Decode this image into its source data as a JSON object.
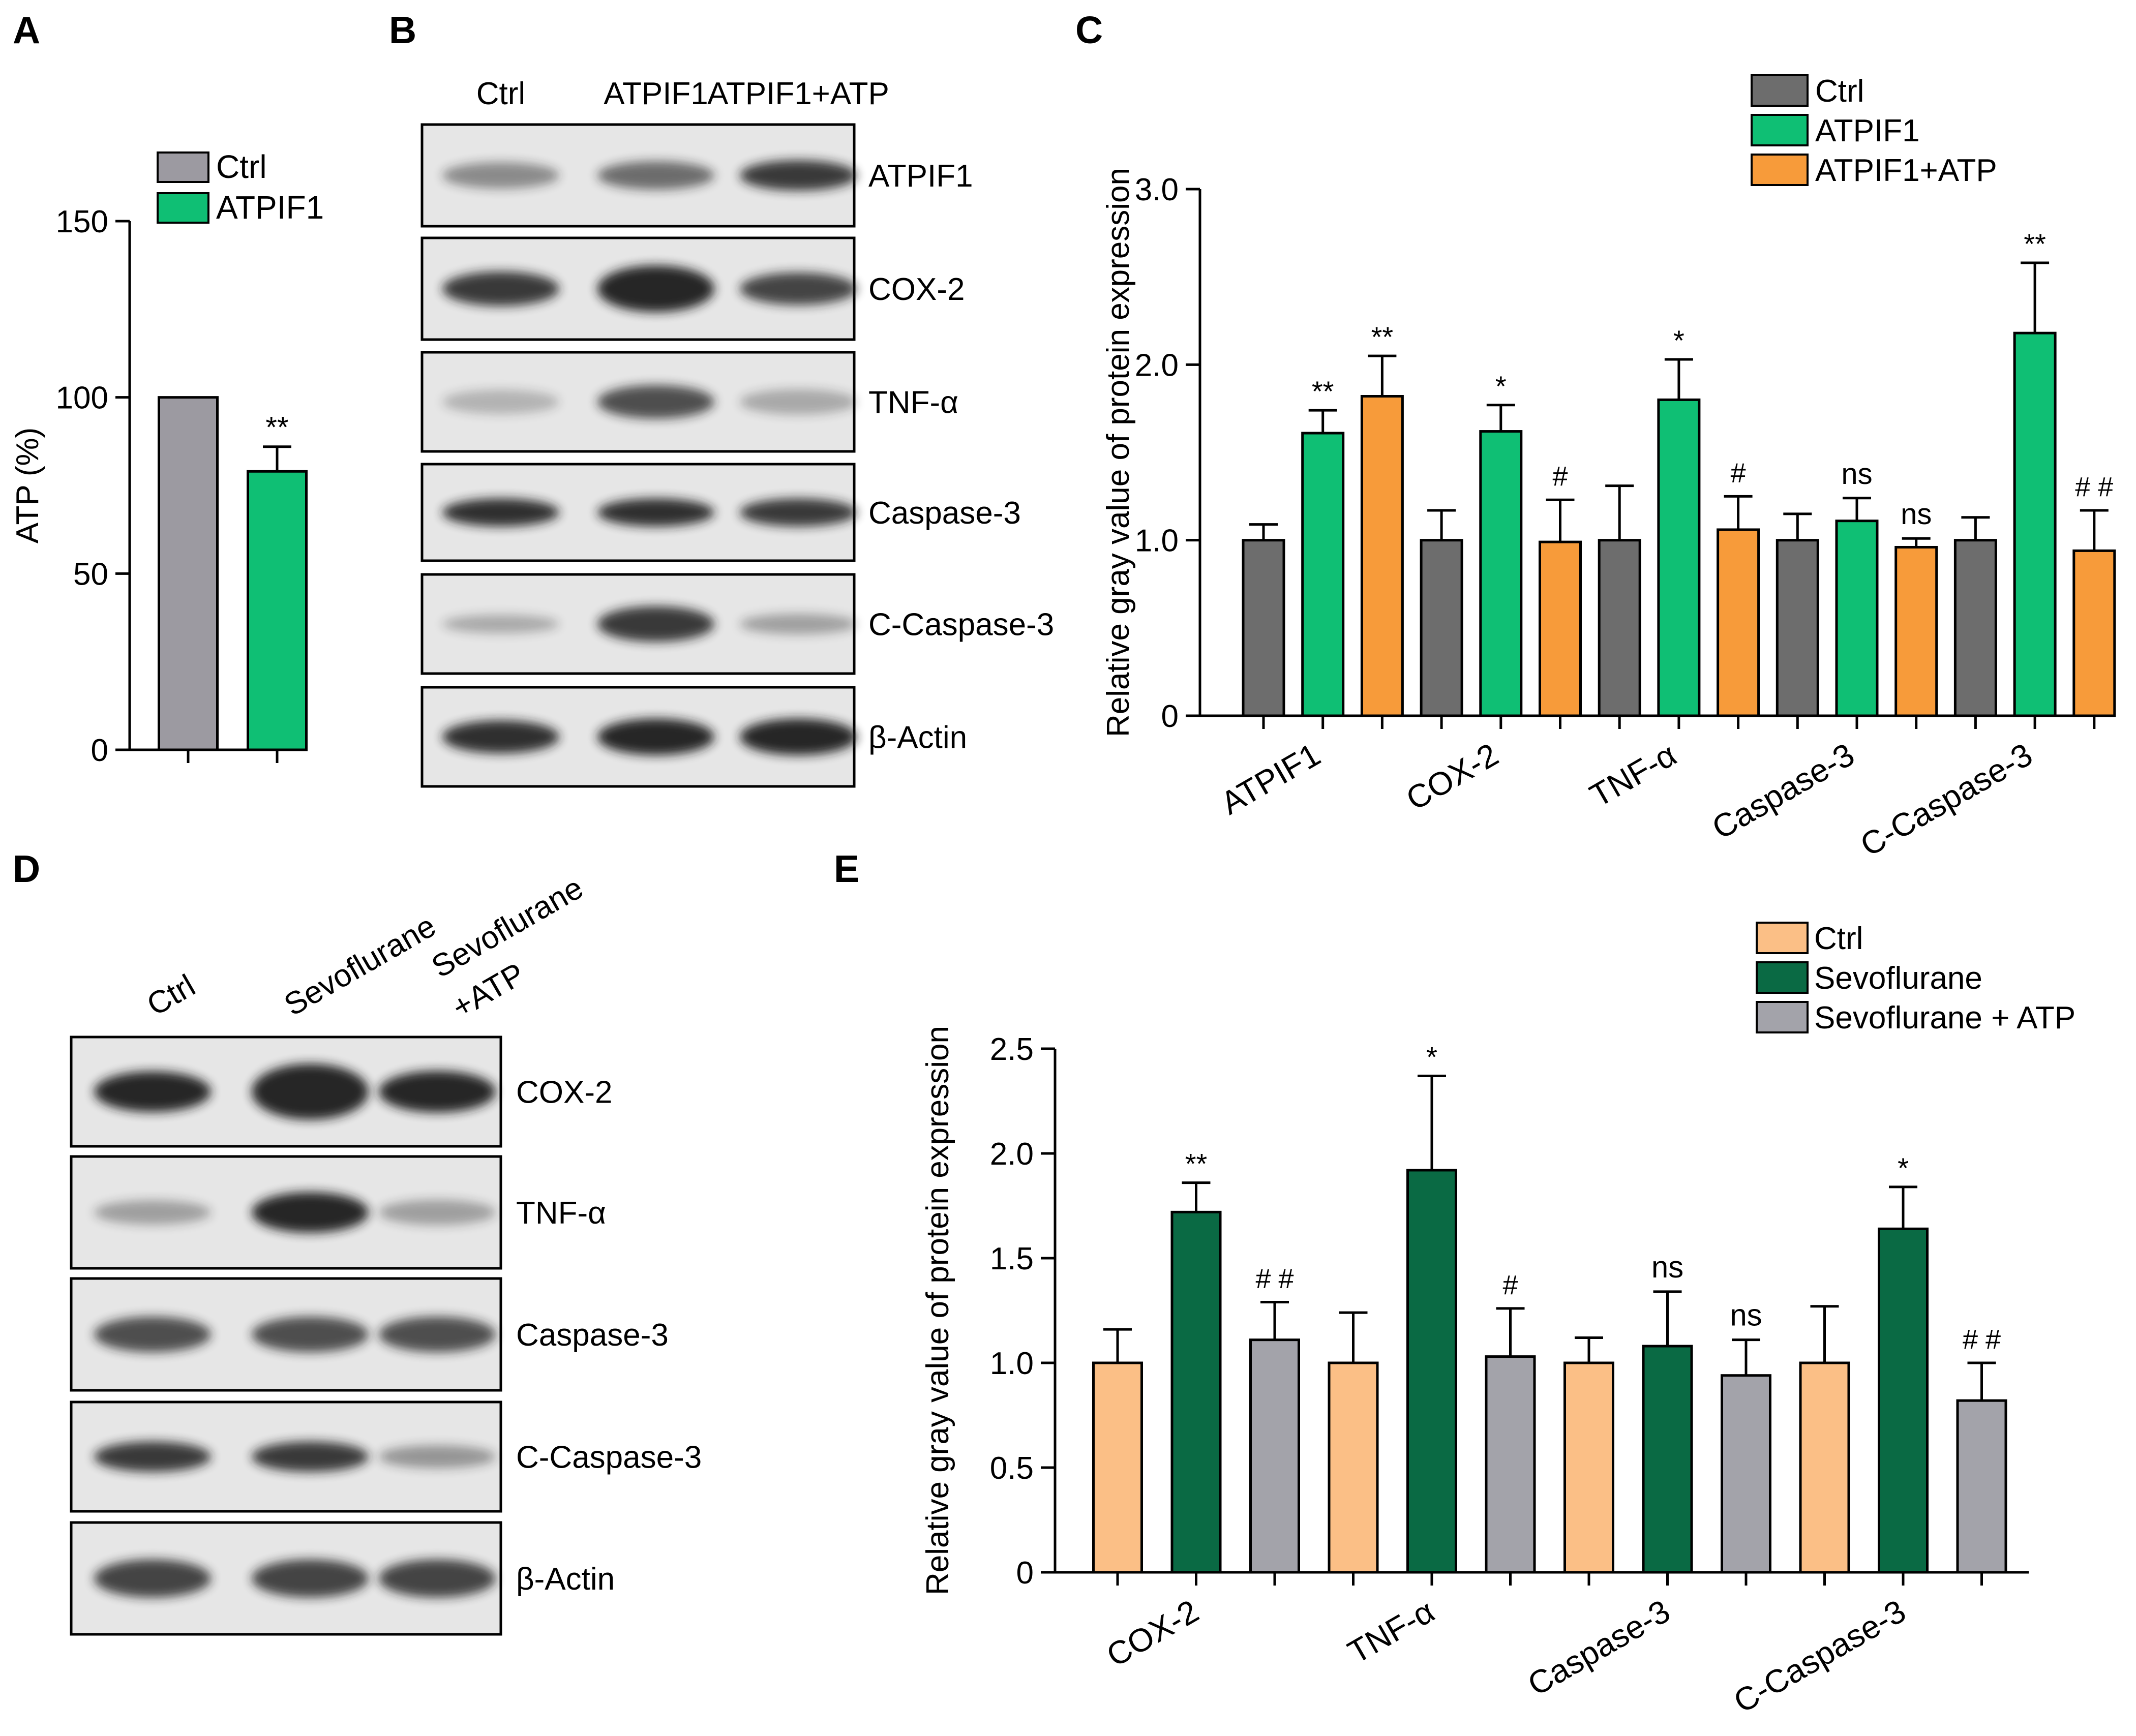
{
  "panel_letters": {
    "A": "A",
    "B": "B",
    "C": "C",
    "D": "D",
    "E": "E"
  },
  "colors": {
    "ctrl_gray": "#9c9aa1",
    "atpif1_green": "#0fbf74",
    "atp_orange": "#f79b3a",
    "ctrl_dark_gray": "#6d6d6d",
    "ctrl_peach": "#fbbf86",
    "sevo_dark_green": "#0a6a44",
    "sevo_atp_gray": "#a3a3aa",
    "blot_bg": "#e6e6e6",
    "band": "#1a1a1a"
  },
  "blot_B": {
    "lanes": [
      "Ctrl",
      "ATPIF1",
      "ATPIF1+ATP"
    ],
    "proteins": [
      "ATPIF1",
      "COX-2",
      "TNF-α",
      "Caspase-3",
      "C-Caspase-3",
      "β-Actin"
    ]
  },
  "blot_D": {
    "lanes": [
      "Ctrl",
      "Sevoflurane",
      "Sevoflurane",
      "+ATP"
    ],
    "proteins": [
      "COX-2",
      "TNF-α",
      "Caspase-3",
      "C-Caspase-3",
      "β-Actin"
    ]
  },
  "chart_data": [
    {
      "panel": "A",
      "type": "bar",
      "categories": [
        "Ctrl",
        "ATPIF1"
      ],
      "values": [
        100,
        79
      ],
      "errors": [
        0,
        7
      ],
      "annotations": [
        "",
        "**"
      ],
      "ylabel": "ATP (%)",
      "ylim": [
        0,
        150
      ],
      "yticks": [
        "0",
        "50",
        "100",
        "150"
      ],
      "legend": [
        "Ctrl",
        "ATPIF1"
      ],
      "legend_position": "top"
    },
    {
      "panel": "C",
      "type": "bar",
      "categories": [
        "ATPIF1",
        "COX-2",
        "TNF-α",
        "Caspase-3",
        "C-Caspase-3"
      ],
      "series": [
        {
          "name": "Ctrl",
          "values": [
            1.0,
            1.0,
            1.0,
            1.0,
            1.0
          ],
          "errors": [
            0.09,
            0.17,
            0.31,
            0.15,
            0.13
          ],
          "annotations": [
            "",
            "",
            "",
            "",
            ""
          ]
        },
        {
          "name": "ATPIF1",
          "values": [
            1.61,
            1.62,
            1.8,
            1.11,
            2.18
          ],
          "errors": [
            0.13,
            0.15,
            0.23,
            0.13,
            0.4
          ],
          "annotations": [
            "**",
            "*",
            "*",
            "ns",
            "**"
          ]
        },
        {
          "name": "ATPIF1+ATP",
          "values": [
            1.82,
            0.99,
            1.06,
            0.96,
            0.94
          ],
          "errors": [
            0.23,
            0.24,
            0.19,
            0.05,
            0.23
          ],
          "annotations": [
            "**",
            "#",
            "#",
            "ns",
            "##"
          ]
        }
      ],
      "ylabel": "Relative gray value of protein expression",
      "ylim": [
        0,
        3.0
      ],
      "yticks": [
        "0",
        "1.0",
        "2.0",
        "3.0"
      ],
      "legend_position": "top-right"
    },
    {
      "panel": "E",
      "type": "bar",
      "categories": [
        "COX-2",
        "TNF-α",
        "Caspase-3",
        "C-Caspase-3"
      ],
      "series": [
        {
          "name": "Ctrl",
          "values": [
            1.0,
            1.0,
            1.0,
            1.0
          ],
          "errors": [
            0.16,
            0.24,
            0.12,
            0.27
          ],
          "annotations": [
            "",
            "",
            "",
            ""
          ]
        },
        {
          "name": "Sevoflurane",
          "values": [
            1.72,
            1.92,
            1.08,
            1.64
          ],
          "errors": [
            0.14,
            0.45,
            0.26,
            0.2
          ],
          "annotations": [
            "**",
            "*",
            "ns",
            "*"
          ]
        },
        {
          "name": "Sevoflurane + ATP",
          "values": [
            1.11,
            1.03,
            0.94,
            0.82
          ],
          "errors": [
            0.18,
            0.23,
            0.17,
            0.18
          ],
          "annotations": [
            "##",
            "#",
            "ns",
            "##"
          ]
        }
      ],
      "ylabel": "Relative gray value of protein expression",
      "ylim": [
        0,
        2.5
      ],
      "yticks": [
        "0",
        "0.5",
        "1.0",
        "1.5",
        "2.0",
        "2.5"
      ],
      "legend_position": "top-right"
    }
  ]
}
